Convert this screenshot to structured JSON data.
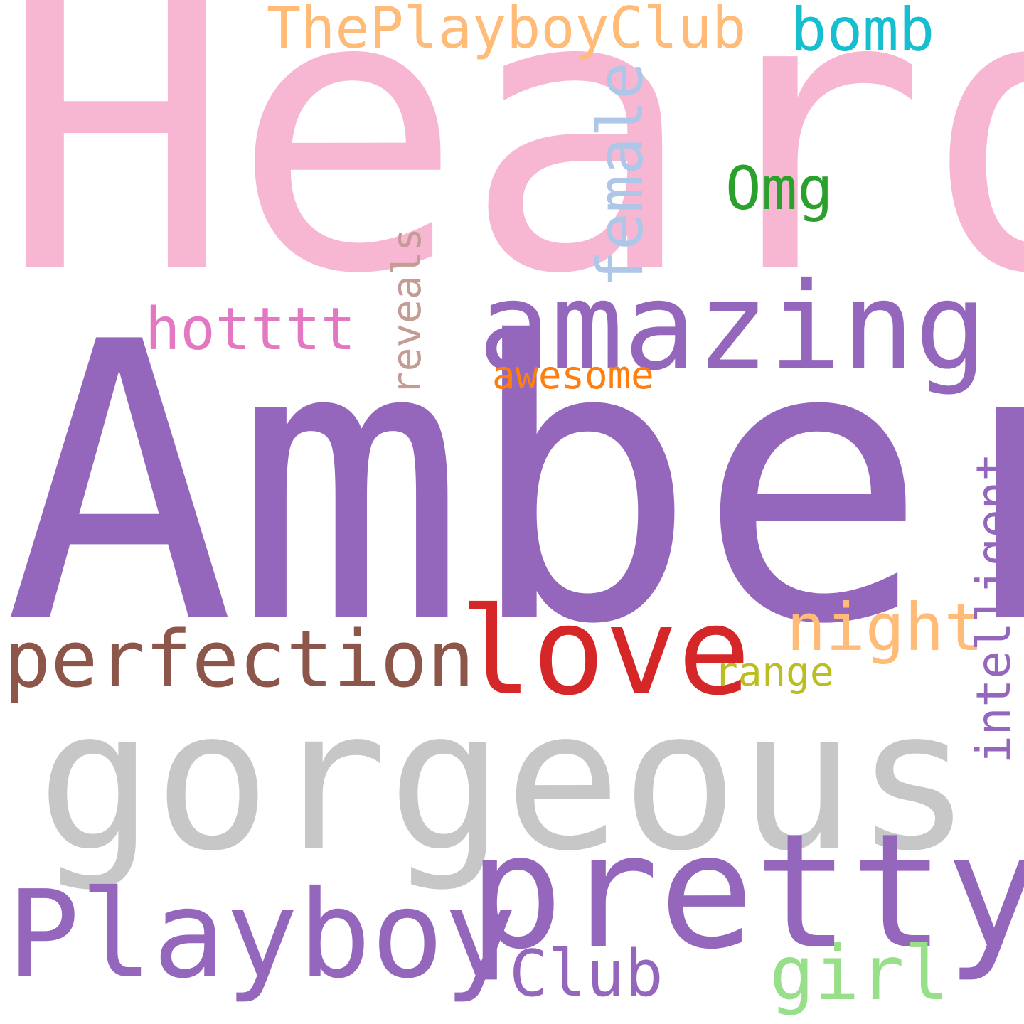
{
  "words": {
    "heard": {
      "text": "Heard",
      "color": "#f7b6d2"
    },
    "amber": {
      "text": "Amber",
      "color": "#9467bd"
    },
    "gorgeous": {
      "text": "gorgeous",
      "color": "#c7c7c7"
    },
    "amazing": {
      "text": "amazing",
      "color": "#9467bd"
    },
    "pretty": {
      "text": "pretty",
      "color": "#9467bd"
    },
    "playboy": {
      "text": "Playboy",
      "color": "#9467bd"
    },
    "love": {
      "text": "love",
      "color": "#d62728"
    },
    "perfection": {
      "text": "perfection",
      "color": "#8c564b"
    },
    "theplayboyclub": {
      "text": "ThePlayboyClub",
      "color": "#ffbb78"
    },
    "bomb": {
      "text": "bomb",
      "color": "#17becf"
    },
    "female": {
      "text": "female",
      "color": "#aec7e8"
    },
    "omg": {
      "text": "Omg",
      "color": "#2ca02c"
    },
    "hotttt": {
      "text": "hotttt",
      "color": "#e377c2"
    },
    "reveals": {
      "text": "reveals",
      "color": "#c49c94"
    },
    "awesome": {
      "text": "awesome",
      "color": "#ff7f0e"
    },
    "night": {
      "text": "night",
      "color": "#ffbb78"
    },
    "range": {
      "text": "range",
      "color": "#bcbd22"
    },
    "intelligent": {
      "text": "intelligent",
      "color": "#9467bd"
    },
    "club": {
      "text": "Club",
      "color": "#9467bd"
    },
    "girl": {
      "text": "girl",
      "color": "#98df8a"
    }
  }
}
